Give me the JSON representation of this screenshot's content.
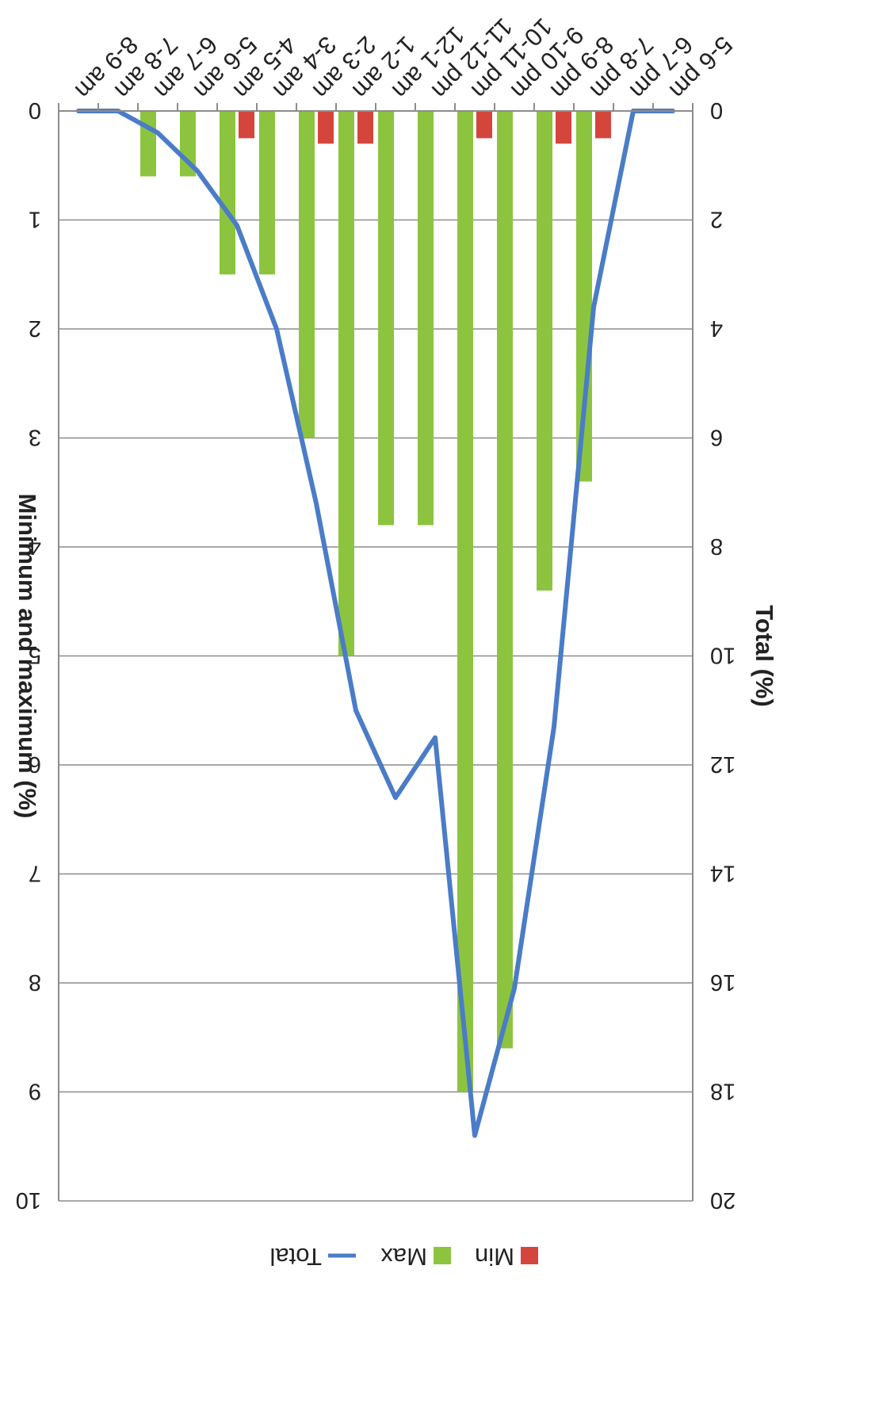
{
  "chart_data": {
    "type": "bar",
    "orientation": "vertical, rotated 180 degrees",
    "categories": [
      "5-6 pm",
      "6-7 pm",
      "7-8 pm",
      "8-9 pm",
      "9-10 pm",
      "10-11 pm",
      "11-12 pm",
      "12-1 am",
      "1-2 am",
      "2-3 am",
      "3-4 am",
      "4-5 am",
      "5-6 am",
      "6-7 am",
      "7-8 am",
      "8-9 am"
    ],
    "series": [
      {
        "name": "Min",
        "type": "bar",
        "axis": "right",
        "color": "#d4463c",
        "values": [
          0,
          0,
          0.25,
          0.3,
          0,
          0.25,
          0,
          0,
          0.3,
          0.3,
          0,
          0.25,
          0,
          0,
          0,
          0
        ]
      },
      {
        "name": "Max",
        "type": "bar",
        "axis": "right",
        "color": "#8dc43f",
        "values": [
          0,
          0,
          3.4,
          4.4,
          8.6,
          9,
          3.8,
          3.8,
          5,
          3,
          1.5,
          1.5,
          0.6,
          0.6,
          0,
          0
        ]
      },
      {
        "name": "Total",
        "type": "line",
        "axis": "left",
        "color": "#4a7cc7",
        "values": [
          0,
          0,
          3.6,
          11.3,
          16.1,
          18.8,
          11.5,
          12.6,
          11,
          7.2,
          4,
          2.1,
          1.1,
          0.4,
          0,
          0
        ]
      }
    ],
    "ylabel": "Total (%)",
    "y2label": "Minimum and maximum (%)",
    "ylim": [
      0,
      20
    ],
    "y2lim": [
      0,
      10
    ],
    "yticks": [
      "0",
      "2",
      "4",
      "6",
      "8",
      "10",
      "12",
      "14",
      "16",
      "18",
      "20"
    ],
    "y2ticks": [
      "0",
      "1",
      "2",
      "3",
      "4",
      "5",
      "6",
      "7",
      "8",
      "9",
      "10"
    ],
    "grid": true,
    "legend_position": "bottom"
  }
}
